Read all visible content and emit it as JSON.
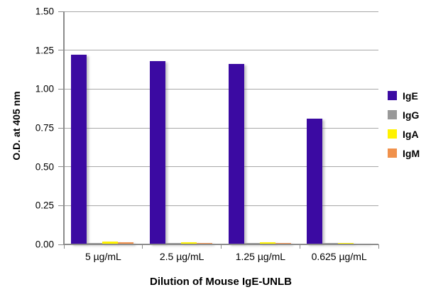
{
  "chart_data": {
    "type": "bar",
    "title": "",
    "ylabel": "O.D. at 405 nm",
    "xlabel": "Dilution of Mouse IgE-UNLB",
    "categories": [
      "5 µg/mL",
      "2.5 µg/mL",
      "1.25 µg/mL",
      "0.625 µg/mL"
    ],
    "series": [
      {
        "name": "IgE",
        "color": "#3b0aa2",
        "values": [
          1.22,
          1.18,
          1.16,
          0.81
        ]
      },
      {
        "name": "IgG",
        "color": "#999999",
        "values": [
          0.01,
          0.008,
          0.008,
          0.008
        ]
      },
      {
        "name": "IgA",
        "color": "#fff200",
        "values": [
          0.02,
          0.015,
          0.012,
          0.01
        ]
      },
      {
        "name": "IgM",
        "color": "#f0914b",
        "values": [
          0.012,
          0.01,
          0.008,
          0.006
        ]
      }
    ],
    "ylim": [
      0,
      1.5
    ],
    "ytick_step": 0.25,
    "ytick_decimals": 2,
    "grid": "horizontal",
    "legend_position": "right"
  },
  "colors": {
    "background": "#ffffff",
    "gridline": "#a8a8a8",
    "axis": "#8c8c8c",
    "text": "#000000"
  }
}
